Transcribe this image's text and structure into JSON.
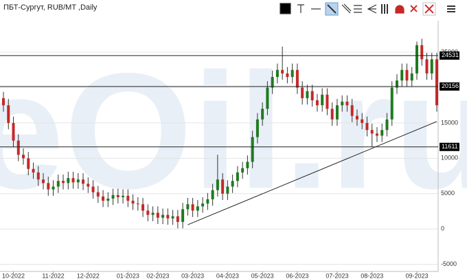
{
  "chart_data": {
    "type": "candlestick",
    "title": "ПБТ-Сургут, RUB/MT ,Daily",
    "watermark": "eOil.ru",
    "categories": [
      null,
      null,
      "10-2022",
      null,
      null,
      null,
      null,
      null,
      null,
      null,
      "11-2022",
      null,
      null,
      null,
      null,
      null,
      null,
      "12-2022",
      null,
      null,
      null,
      null,
      null,
      null,
      null,
      "01-2023",
      null,
      null,
      null,
      null,
      null,
      "02-2023",
      null,
      null,
      null,
      null,
      null,
      null,
      "03-2023",
      null,
      null,
      null,
      null,
      null,
      null,
      "04-2023",
      null,
      null,
      null,
      null,
      null,
      null,
      "05-2023",
      null,
      null,
      null,
      null,
      null,
      null,
      "06-2023",
      null,
      null,
      null,
      null,
      null,
      null,
      null,
      "07-2023",
      null,
      null,
      null,
      null,
      null,
      null,
      "08-2023",
      null,
      null,
      null,
      null,
      null,
      null,
      null,
      null,
      "09-2023",
      null,
      null,
      null,
      null
    ],
    "open": [
      18500,
      17500,
      15000,
      12500,
      10500,
      10000,
      8500,
      8000,
      7000,
      6500,
      5600,
      6000,
      6800,
      6500,
      7200,
      6600,
      7000,
      6400,
      6000,
      5200,
      4600,
      4000,
      4300,
      4800,
      4500,
      4700,
      4000,
      3600,
      3500,
      2600,
      2000,
      2300,
      1600,
      2000,
      1500,
      1800,
      1000,
      2800,
      3500,
      2600,
      3200,
      3600,
      4200,
      5500,
      7000,
      5000,
      6000,
      6800,
      8000,
      8600,
      9500,
      13000,
      15500,
      17000,
      20000,
      21500,
      22500,
      22000,
      21500,
      22500,
      20000,
      18500,
      19500,
      18200,
      17500,
      19000,
      17000,
      15500,
      17500,
      18000,
      17500,
      16000,
      15500,
      15000,
      14000,
      13500,
      13200,
      14000,
      15500,
      20000,
      21000,
      22500,
      21000,
      22000,
      26000,
      24000,
      22000,
      24000
    ],
    "high": [
      19400,
      18400,
      15900,
      13400,
      11400,
      10900,
      9400,
      8900,
      7900,
      7400,
      6900,
      7700,
      7700,
      8100,
      8100,
      7900,
      7900,
      7300,
      6900,
      6100,
      5500,
      5200,
      5700,
      5700,
      5600,
      5600,
      4900,
      4500,
      4400,
      3500,
      3200,
      3200,
      2900,
      2900,
      2700,
      2700,
      3700,
      4400,
      4400,
      4100,
      4500,
      5100,
      6400,
      10500,
      7900,
      6900,
      7700,
      8900,
      9500,
      10400,
      13900,
      16400,
      17900,
      20900,
      22400,
      23400,
      25800,
      22900,
      23400,
      23400,
      20900,
      20400,
      20400,
      19100,
      19900,
      19900,
      17900,
      18400,
      18900,
      18900,
      18400,
      16900,
      16400,
      15900,
      14900,
      14400,
      14900,
      16400,
      20900,
      21900,
      23400,
      23400,
      22900,
      26500,
      26900,
      24900,
      24900,
      24900
    ],
    "low": [
      16600,
      14100,
      11600,
      9600,
      9100,
      7600,
      7100,
      6100,
      5600,
      4700,
      4700,
      5100,
      5600,
      5600,
      5700,
      5700,
      5500,
      5100,
      4300,
      3700,
      3100,
      3100,
      3400,
      3600,
      3600,
      3100,
      2700,
      2600,
      1700,
      1100,
      1100,
      700,
      700,
      600,
      600,
      100,
      100,
      1900,
      1700,
      1700,
      2300,
      2700,
      3300,
      4600,
      4100,
      4100,
      5100,
      5900,
      7100,
      7700,
      8600,
      12100,
      14600,
      16100,
      19100,
      20600,
      21100,
      20600,
      20600,
      19100,
      17600,
      17600,
      17300,
      16600,
      16600,
      16100,
      14600,
      14600,
      16600,
      16600,
      15100,
      14600,
      14100,
      13100,
      11600,
      12300,
      12300,
      13100,
      14600,
      19100,
      20100,
      20100,
      20100,
      21100,
      23100,
      21100,
      21100,
      16600
    ],
    "close": [
      17500,
      15000,
      12500,
      10500,
      10000,
      8500,
      8000,
      7000,
      6500,
      5600,
      6000,
      6800,
      6500,
      7200,
      6600,
      7000,
      6400,
      6000,
      5200,
      4600,
      4000,
      4300,
      4800,
      4500,
      4700,
      4000,
      3600,
      3500,
      2600,
      2000,
      2300,
      1600,
      2000,
      1500,
      1800,
      1000,
      2800,
      3500,
      2600,
      3200,
      3600,
      4200,
      5500,
      7000,
      5000,
      6000,
      6800,
      8000,
      8600,
      9500,
      13000,
      15500,
      17000,
      20000,
      21500,
      22500,
      22000,
      21500,
      22500,
      20000,
      18500,
      19500,
      18200,
      17500,
      19000,
      17000,
      15500,
      17500,
      18000,
      17500,
      16000,
      15500,
      15000,
      14000,
      13500,
      13200,
      14000,
      15500,
      20000,
      21000,
      22500,
      21000,
      22000,
      26000,
      24000,
      22000,
      24000,
      17500
    ],
    "up_color": "#1f7a1f",
    "down_color": "#c62828",
    "ylim": [
      -6000,
      28500
    ],
    "yticks": [
      -5000,
      0,
      5000,
      10000,
      15000,
      20000,
      25000
    ],
    "grid": true,
    "levels": [
      24531,
      20156,
      11611
    ],
    "trendline": {
      "x": [
        37,
        87
      ],
      "y": [
        600,
        15200
      ]
    }
  }
}
